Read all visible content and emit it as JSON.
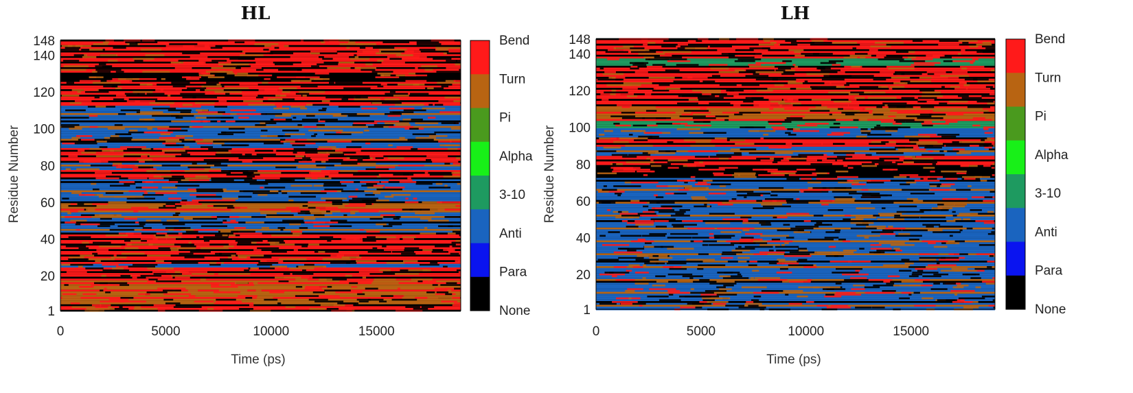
{
  "chart_data": [
    {
      "type": "heatmap",
      "title": "HL",
      "xlabel": "Time (ps)",
      "ylabel": "Residue Number",
      "xlim": [
        0,
        19000
      ],
      "ylim": [
        1,
        148
      ],
      "x_ticks": [
        "0",
        "5000",
        "10000",
        "15000"
      ],
      "x_tick_values": [
        0,
        5000,
        10000,
        15000
      ],
      "y_ticks": [
        "1",
        "20",
        "40",
        "60",
        "80",
        "100",
        "120",
        "140",
        "148"
      ],
      "y_tick_values": [
        1,
        20,
        40,
        60,
        80,
        100,
        120,
        140,
        148
      ],
      "legend_position": "right",
      "colorbar": [
        {
          "label": "Bend",
          "color": "#ff1a1a"
        },
        {
          "label": "Turn",
          "color": "#b86412"
        },
        {
          "label": "Pi",
          "color": "#4a9a1e"
        },
        {
          "label": "Alpha",
          "color": "#18f018"
        },
        {
          "label": "3-10",
          "color": "#1e9a60"
        },
        {
          "label": "Anti",
          "color": "#1a64bf"
        },
        {
          "label": "Para",
          "color": "#0a14f0"
        },
        {
          "label": "None",
          "color": "#000000"
        }
      ],
      "states_by_residue": [
        {
          "residues": [
            1,
            4
          ],
          "state": "Bend"
        },
        {
          "residues": [
            5,
            17
          ],
          "state": "Turn"
        },
        {
          "residues": [
            18,
            24
          ],
          "state": "Bend"
        },
        {
          "residues": [
            25,
            26
          ],
          "state": "Anti"
        },
        {
          "residues": [
            27,
            36
          ],
          "state": "Bend"
        },
        {
          "residues": [
            37,
            43
          ],
          "state": "Bend"
        },
        {
          "residues": [
            44,
            54
          ],
          "state": "Anti"
        },
        {
          "residues": [
            55,
            58
          ],
          "state": "Turn"
        },
        {
          "residues": [
            59,
            72
          ],
          "state": "Anti"
        },
        {
          "residues": [
            73,
            77
          ],
          "state": "Bend"
        },
        {
          "residues": [
            78,
            82
          ],
          "state": "Anti"
        },
        {
          "residues": [
            83,
            89
          ],
          "state": "Bend"
        },
        {
          "residues": [
            90,
            112
          ],
          "state": "Anti"
        },
        {
          "residues": [
            113,
            125
          ],
          "state": "Bend"
        },
        {
          "residues": [
            126,
            130
          ],
          "state": "None"
        },
        {
          "residues": [
            131,
            134
          ],
          "state": "Bend"
        },
        {
          "residues": [
            135,
            139
          ],
          "state": "Bend"
        },
        {
          "residues": [
            140,
            148
          ],
          "state": "Bend"
        }
      ]
    },
    {
      "type": "heatmap",
      "title": "LH",
      "xlabel": "Time (ps)",
      "ylabel": "Residue Number",
      "xlim": [
        0,
        19000
      ],
      "ylim": [
        1,
        148
      ],
      "x_ticks": [
        "0",
        "5000",
        "10000",
        "15000"
      ],
      "x_tick_values": [
        0,
        5000,
        10000,
        15000
      ],
      "y_ticks": [
        "1",
        "20",
        "40",
        "60",
        "80",
        "100",
        "120",
        "140",
        "148"
      ],
      "y_tick_values": [
        1,
        20,
        40,
        60,
        80,
        100,
        120,
        140,
        148
      ],
      "legend_position": "right",
      "colorbar": [
        {
          "label": "Bend",
          "color": "#ff1a1a"
        },
        {
          "label": "Turn",
          "color": "#b86412"
        },
        {
          "label": "Pi",
          "color": "#4a9a1e"
        },
        {
          "label": "Alpha",
          "color": "#18f018"
        },
        {
          "label": "3-10",
          "color": "#1e9a60"
        },
        {
          "label": "Anti",
          "color": "#1a64bf"
        },
        {
          "label": "Para",
          "color": "#0a14f0"
        },
        {
          "label": "None",
          "color": "#000000"
        }
      ],
      "states_by_residue": [
        {
          "residues": [
            1,
            14
          ],
          "state": "Anti"
        },
        {
          "residues": [
            15,
            30
          ],
          "state": "Anti"
        },
        {
          "residues": [
            31,
            46
          ],
          "state": "Anti"
        },
        {
          "residues": [
            47,
            72
          ],
          "state": "Anti"
        },
        {
          "residues": [
            73,
            79
          ],
          "state": "None"
        },
        {
          "residues": [
            80,
            84
          ],
          "state": "Bend"
        },
        {
          "residues": [
            85,
            89
          ],
          "state": "Anti"
        },
        {
          "residues": [
            90,
            94
          ],
          "state": "Bend"
        },
        {
          "residues": [
            95,
            99
          ],
          "state": "Anti"
        },
        {
          "residues": [
            100,
            103
          ],
          "state": "3-10"
        },
        {
          "residues": [
            104,
            110
          ],
          "state": "Turn"
        },
        {
          "residues": [
            111,
            133
          ],
          "state": "Bend"
        },
        {
          "residues": [
            134,
            137
          ],
          "state": "3-10"
        },
        {
          "residues": [
            138,
            148
          ],
          "state": "Bend"
        }
      ]
    }
  ]
}
